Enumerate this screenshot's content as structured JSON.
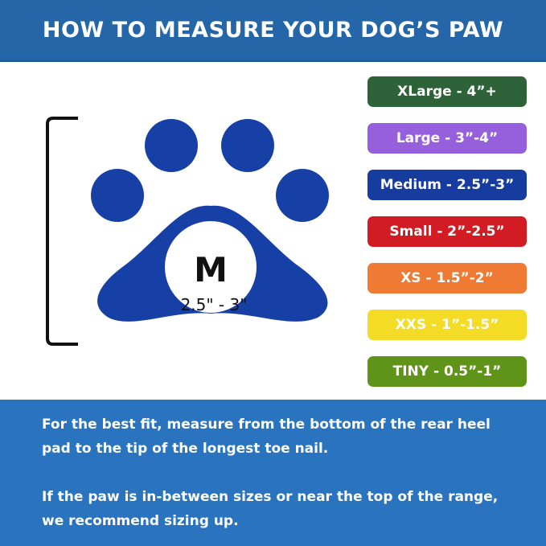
{
  "header": {
    "title": "HOW TO MEASURE YOUR DOG’S PAW"
  },
  "paw": {
    "size_letter": "M",
    "size_range": "2.5\" - 3\"",
    "color": "#1740a6"
  },
  "sizes": [
    {
      "label": "XLarge - 4”+",
      "color": "#2e6239"
    },
    {
      "label": "Large - 3”-4”",
      "color": "#9660dd"
    },
    {
      "label": "Medium - 2.5”-3”",
      "color": "#173ca0"
    },
    {
      "label": "Small - 2”-2.5”",
      "color": "#d11c23"
    },
    {
      "label": "XS - 1.5”-2”",
      "color": "#ee7a33"
    },
    {
      "label": "XXS - 1”-1.5”",
      "color": "#f4dc26"
    },
    {
      "label": "TINY - 0.5”-1”",
      "color": "#5f9418"
    }
  ],
  "footer": {
    "para1": "For the best fit, measure from the bottom of the rear heel pad to the tip of the longest toe nail.",
    "para2": "If the paw is in-between sizes or near the top of the range, we recommend sizing up."
  }
}
